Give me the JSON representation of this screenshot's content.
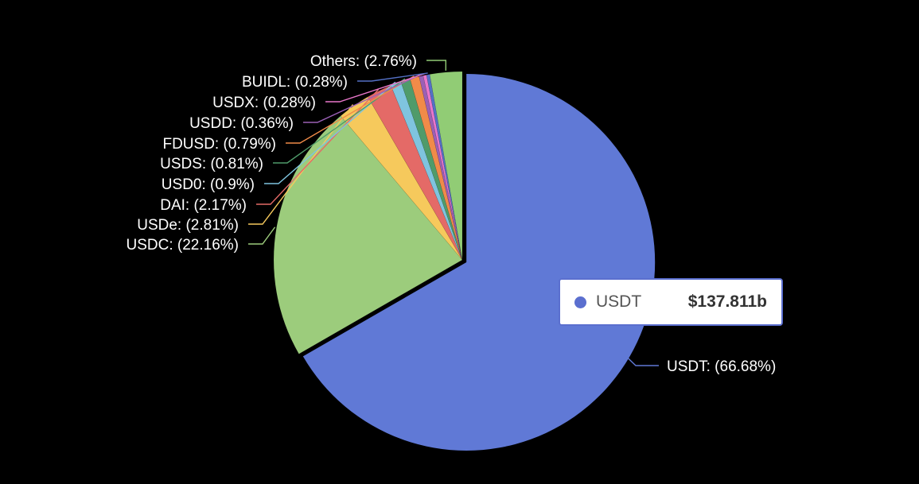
{
  "chart_data": {
    "type": "pie",
    "slices": [
      {
        "label": "USDT",
        "percent": 66.68,
        "color": "#6079d6",
        "text": "USDT: (66.68%)"
      },
      {
        "label": "USDC",
        "percent": 22.16,
        "color": "#9ccc7c",
        "text": "USDC: (22.16%)"
      },
      {
        "label": "USDe",
        "percent": 2.81,
        "color": "#f6c95c",
        "text": "USDe: (2.81%)"
      },
      {
        "label": "DAI",
        "percent": 2.17,
        "color": "#e46a67",
        "text": "DAI: (2.17%)"
      },
      {
        "label": "USD0",
        "percent": 0.9,
        "color": "#7fc4df",
        "text": "USD0: (0.9%)"
      },
      {
        "label": "USDS",
        "percent": 0.81,
        "color": "#4f9b6a",
        "text": "USDS: (0.81%)"
      },
      {
        "label": "FDUSD",
        "percent": 0.79,
        "color": "#f08b49",
        "text": "FDUSD: (0.79%)"
      },
      {
        "label": "USDD",
        "percent": 0.36,
        "color": "#9a60b6",
        "text": "USDD: (0.36%)"
      },
      {
        "label": "USDX",
        "percent": 0.28,
        "color": "#e977cb",
        "text": "USDX: (0.28%)"
      },
      {
        "label": "BUIDL",
        "percent": 0.28,
        "color": "#5470c6",
        "text": "BUIDL: (0.28%)"
      },
      {
        "label": "Others",
        "percent": 2.76,
        "color": "#91cc75",
        "text": "Others: (2.76%)"
      }
    ],
    "legend": "none",
    "highlighted": "USDT"
  },
  "tooltip": {
    "name": "USDT",
    "value": "$137.811b",
    "color": "#5b6fcf"
  }
}
